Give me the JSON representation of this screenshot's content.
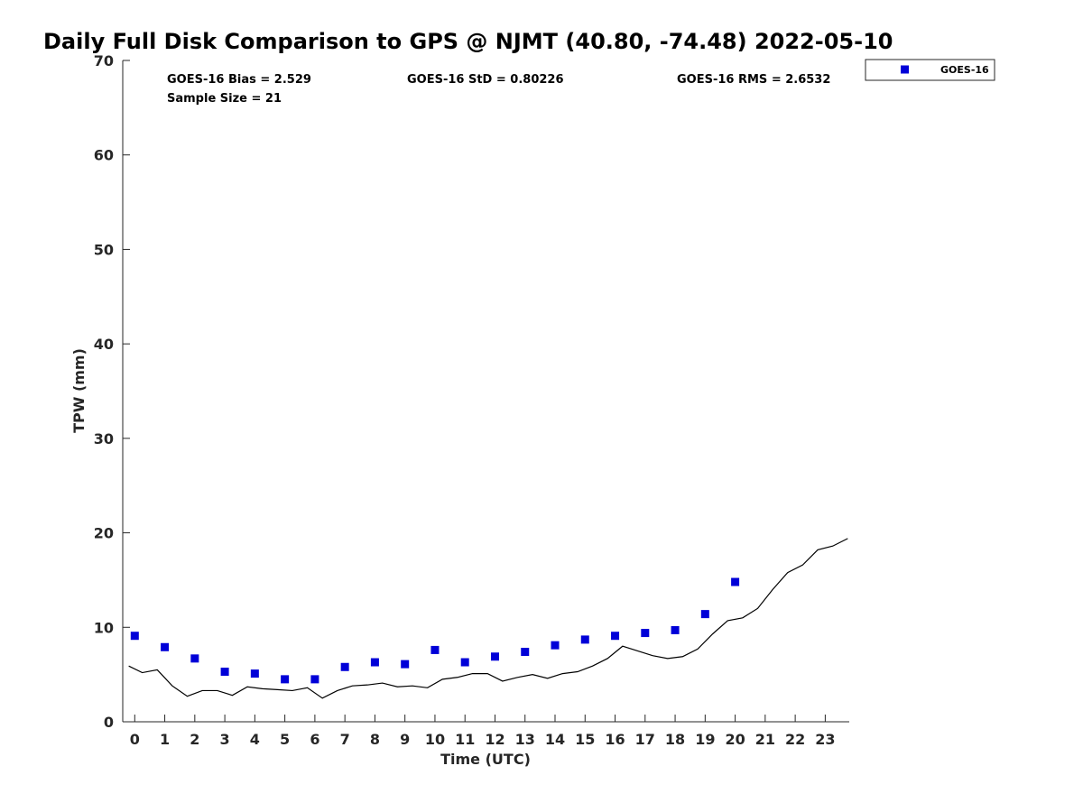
{
  "chart_data": {
    "type": "scatter",
    "title": "Daily Full Disk Comparison to GPS @ NJMT (40.80, -74.48) 2022-05-10",
    "xlabel": "Time (UTC)",
    "ylabel": "TPW (mm)",
    "xlim": [
      -0.4,
      23.8
    ],
    "ylim": [
      0,
      70
    ],
    "xticks": [
      0,
      1,
      2,
      3,
      4,
      5,
      6,
      7,
      8,
      9,
      10,
      11,
      12,
      13,
      14,
      15,
      16,
      17,
      18,
      19,
      20,
      21,
      22,
      23
    ],
    "yticks": [
      0,
      10,
      20,
      30,
      40,
      50,
      60,
      70
    ],
    "grid": false,
    "legend": {
      "position": "outside-top-right",
      "entries": [
        "GOES-16"
      ]
    },
    "stats": [
      {
        "text": "GOES-16 Bias = 2.529"
      },
      {
        "text": "GOES-16 StD = 0.80226"
      },
      {
        "text": "GOES-16 RMS = 2.6532"
      },
      {
        "text": "Sample Size = 21"
      }
    ],
    "series": [
      {
        "name": "GOES-16",
        "kind": "markers",
        "color": "#0000d8",
        "x": [
          0,
          1,
          2,
          3,
          4,
          5,
          6,
          7,
          8,
          9,
          10,
          11,
          12,
          13,
          14,
          15,
          16,
          17,
          18,
          19,
          20
        ],
        "y": [
          9.1,
          7.9,
          6.7,
          5.3,
          5.1,
          4.5,
          4.5,
          5.8,
          6.3,
          6.1,
          7.6,
          6.3,
          6.9,
          7.4,
          8.1,
          8.7,
          9.1,
          9.4,
          9.7,
          11.4,
          14.8
        ]
      },
      {
        "kind": "line",
        "color": "#000000",
        "x": [
          -0.2,
          0.25,
          0.75,
          1.25,
          1.75,
          2.25,
          2.75,
          3.25,
          3.75,
          4.25,
          4.75,
          5.25,
          5.75,
          6.25,
          6.75,
          7.25,
          7.75,
          8.25,
          8.75,
          9.25,
          9.75,
          10.25,
          10.75,
          11.25,
          11.75,
          12.25,
          12.75,
          13.25,
          13.75,
          14.25,
          14.75,
          15.25,
          15.75,
          16.25,
          16.75,
          17.25,
          17.75,
          18.25,
          18.75,
          19.25,
          19.75,
          20.25,
          20.75,
          21.25,
          21.75,
          22.25,
          22.75,
          23.25,
          23.75
        ],
        "y": [
          5.9,
          5.2,
          5.5,
          3.8,
          2.7,
          3.3,
          3.3,
          2.8,
          3.7,
          3.5,
          3.4,
          3.3,
          3.6,
          2.5,
          3.3,
          3.8,
          3.9,
          4.1,
          3.7,
          3.8,
          3.6,
          4.5,
          4.7,
          5.1,
          5.1,
          4.3,
          4.7,
          5.0,
          4.6,
          5.1,
          5.3,
          5.9,
          6.7,
          8.0,
          7.5,
          7.0,
          6.7,
          6.9,
          7.7,
          9.3,
          10.7,
          11.0,
          12.0,
          14.0,
          15.8,
          16.6,
          18.2,
          18.6,
          19.4
        ]
      }
    ]
  }
}
